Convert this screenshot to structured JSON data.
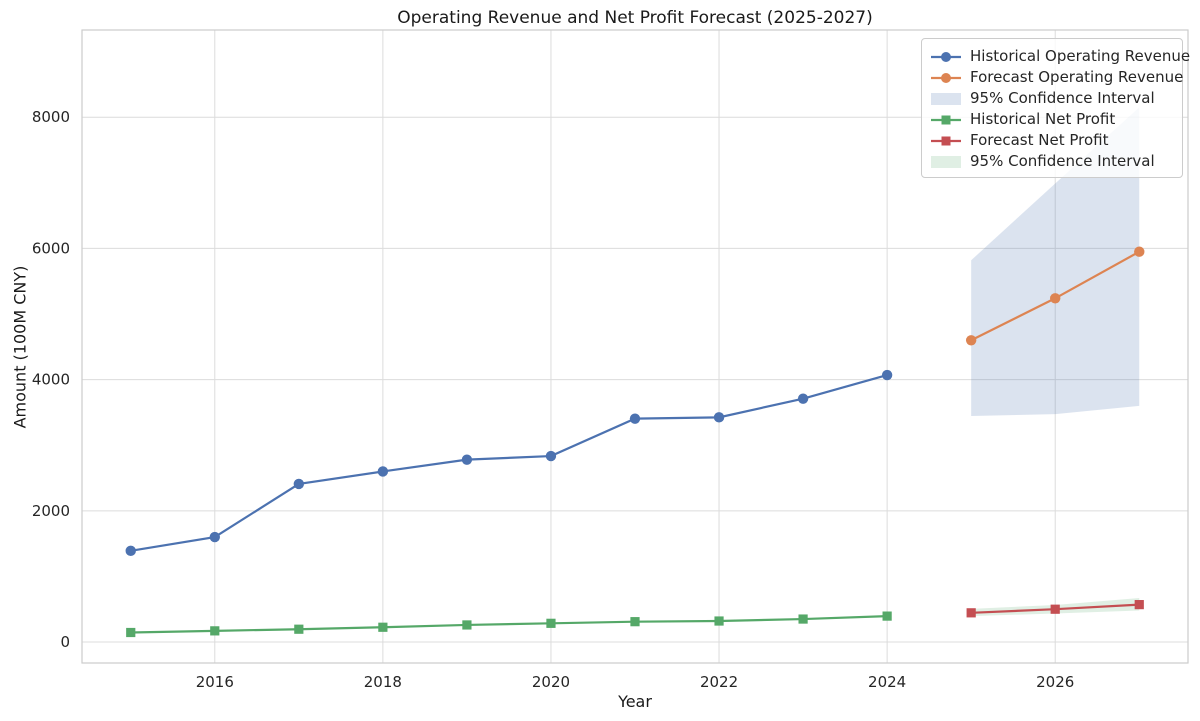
{
  "chart_data": {
    "type": "line",
    "title": "Operating Revenue and Net Profit Forecast (2025-2027)",
    "xlabel": "Year",
    "ylabel": "Amount (100M CNY)",
    "grid": true,
    "legend_position": "upper right",
    "x_ticks": [
      2016,
      2018,
      2020,
      2022,
      2024,
      2026
    ],
    "y_ticks": [
      0,
      2000,
      4000,
      6000,
      8000
    ],
    "xlim": [
      2014.42,
      2027.58
    ],
    "ylim": [
      -320,
      9330
    ],
    "series": [
      {
        "name": "Historical Operating Revenue",
        "kind": "line",
        "marker": "circle",
        "color": "#4C72B0",
        "x": [
          2015,
          2016,
          2017,
          2018,
          2019,
          2020,
          2021,
          2022,
          2023,
          2024
        ],
        "y": [
          1390,
          1600,
          2410,
          2600,
          2780,
          2835,
          3405,
          3425,
          3710,
          4070
        ]
      },
      {
        "name": "Forecast Operating Revenue",
        "kind": "line",
        "marker": "circle",
        "color": "#DD8452",
        "x": [
          2025,
          2026,
          2027
        ],
        "y": [
          4600,
          5240,
          5950
        ]
      },
      {
        "name": "95% Confidence Interval",
        "kind": "band",
        "color": "#4C72B0",
        "opacity": 0.2,
        "x": [
          2025,
          2026,
          2027
        ],
        "lower": [
          3445,
          3475,
          3600
        ],
        "upper": [
          5820,
          6990,
          8150
        ]
      },
      {
        "name": "Historical Net Profit",
        "kind": "line",
        "marker": "square",
        "color": "#55A868",
        "x": [
          2015,
          2016,
          2017,
          2018,
          2019,
          2020,
          2021,
          2022,
          2023,
          2024
        ],
        "y": [
          145,
          170,
          195,
          225,
          260,
          285,
          310,
          320,
          350,
          395
        ]
      },
      {
        "name": "Forecast Net Profit",
        "kind": "line",
        "marker": "square",
        "color": "#C44E52",
        "x": [
          2025,
          2026,
          2027
        ],
        "y": [
          445,
          500,
          570
        ]
      },
      {
        "name": "95% Confidence Interval",
        "kind": "band",
        "color": "#55A868",
        "opacity": 0.18,
        "x": [
          2025,
          2026,
          2027
        ],
        "lower": [
          395,
          435,
          480
        ],
        "upper": [
          505,
          565,
          670
        ]
      }
    ],
    "legend_entries": [
      {
        "label": "Historical Operating Revenue",
        "swatch": "line-circle",
        "color": "#4C72B0"
      },
      {
        "label": "Forecast Operating Revenue",
        "swatch": "line-circle",
        "color": "#DD8452"
      },
      {
        "label": "95% Confidence Interval",
        "swatch": "patch",
        "color": "#4C72B0",
        "opacity": 0.2
      },
      {
        "label": "Historical Net Profit",
        "swatch": "line-square",
        "color": "#55A868"
      },
      {
        "label": "Forecast Net Profit",
        "swatch": "line-square",
        "color": "#C44E52"
      },
      {
        "label": "95% Confidence Interval",
        "swatch": "patch",
        "color": "#55A868",
        "opacity": 0.18
      }
    ]
  }
}
